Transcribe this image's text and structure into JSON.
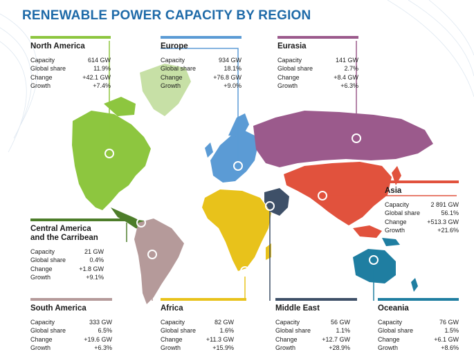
{
  "title": "RENEWABLE POWER CAPACITY BY REGION",
  "colors": {
    "north_america": "#8dc63f",
    "europe": "#5b9bd5",
    "eurasia": "#9b5a8c",
    "asia": "#e1523d",
    "central_america": "#4d7d2a",
    "south_america": "#b59a9a",
    "africa": "#e8c21b",
    "middle_east": "#3e5068",
    "oceania": "#1f7ea1"
  },
  "regions": {
    "north_america": {
      "name": "North America",
      "rows": [
        {
          "label": "Capacity",
          "value": "614 GW"
        },
        {
          "label": "Global share",
          "value": "11.9%"
        },
        {
          "label": "Change",
          "value": "+42.1 GW"
        },
        {
          "label": "Growth",
          "value": "+7.4%"
        }
      ]
    },
    "europe": {
      "name": "Europe",
      "rows": [
        {
          "label": "Capacity",
          "value": "934 GW"
        },
        {
          "label": "Global share",
          "value": "18.1%"
        },
        {
          "label": "Change",
          "value": "+76.8 GW"
        },
        {
          "label": "Growth",
          "value": "+9.0%"
        }
      ]
    },
    "eurasia": {
      "name": "Eurasia",
      "rows": [
        {
          "label": "Capacity",
          "value": "141 GW"
        },
        {
          "label": "Global share",
          "value": "2.7%"
        },
        {
          "label": "Change",
          "value": "+8.4 GW"
        },
        {
          "label": "Growth",
          "value": "+6.3%"
        }
      ]
    },
    "asia": {
      "name": "Asia",
      "rows": [
        {
          "label": "Capacity",
          "value": "2 891 GW"
        },
        {
          "label": "Global share",
          "value": "56.1%"
        },
        {
          "label": "Change",
          "value": "+513.3 GW"
        },
        {
          "label": "Growth",
          "value": "+21.6%"
        }
      ]
    },
    "central_america": {
      "name": "Central America and the Carribean",
      "rows": [
        {
          "label": "Capacity",
          "value": "21 GW"
        },
        {
          "label": "Global share",
          "value": "0.4%"
        },
        {
          "label": "Change",
          "value": "+1.8 GW"
        },
        {
          "label": "Growth",
          "value": "+9.1%"
        }
      ]
    },
    "south_america": {
      "name": "South America",
      "rows": [
        {
          "label": "Capacity",
          "value": "333 GW"
        },
        {
          "label": "Global share",
          "value": "6.5%"
        },
        {
          "label": "Change",
          "value": "+19.6 GW"
        },
        {
          "label": "Growth",
          "value": "+6.3%"
        }
      ]
    },
    "africa": {
      "name": "Africa",
      "rows": [
        {
          "label": "Capacity",
          "value": "82 GW"
        },
        {
          "label": "Global share",
          "value": "1.6%"
        },
        {
          "label": "Change",
          "value": "+11.3 GW"
        },
        {
          "label": "Growth",
          "value": "+15.9%"
        }
      ]
    },
    "middle_east": {
      "name": "Middle East",
      "rows": [
        {
          "label": "Capacity",
          "value": "56 GW"
        },
        {
          "label": "Global share",
          "value": "1.1%"
        },
        {
          "label": "Change",
          "value": "+12.7 GW"
        },
        {
          "label": "Growth",
          "value": "+28.9%"
        }
      ]
    },
    "oceania": {
      "name": "Oceania",
      "rows": [
        {
          "label": "Capacity",
          "value": "76 GW"
        },
        {
          "label": "Global share",
          "value": "1.5%"
        },
        {
          "label": "Change",
          "value": "+6.1 GW"
        },
        {
          "label": "Growth",
          "value": "+8.6%"
        }
      ]
    }
  }
}
